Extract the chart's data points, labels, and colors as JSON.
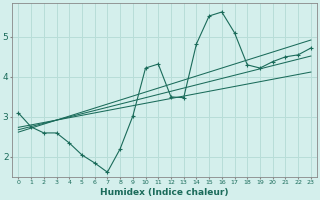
{
  "xlabel": "Humidex (Indice chaleur)",
  "bg_color": "#d4efec",
  "grid_color": "#b8ddd8",
  "line_color": "#1a6b5a",
  "x_data": [
    0,
    1,
    2,
    3,
    4,
    5,
    6,
    7,
    8,
    9,
    10,
    11,
    12,
    13,
    14,
    15,
    16,
    17,
    18,
    19,
    20,
    21,
    22,
    23
  ],
  "line1": [
    3.1,
    2.75,
    2.6,
    2.6,
    2.35,
    2.05,
    1.85,
    1.62,
    2.2,
    3.02,
    4.22,
    4.32,
    3.5,
    3.48,
    4.82,
    5.52,
    5.62,
    5.1,
    4.3,
    4.22,
    4.38,
    4.5,
    4.55,
    4.72
  ],
  "line_reg1": [
    2.62,
    2.72,
    2.82,
    2.92,
    3.02,
    3.12,
    3.22,
    3.32,
    3.42,
    3.52,
    3.62,
    3.72,
    3.82,
    3.92,
    4.02,
    4.12,
    4.22,
    4.32,
    4.42,
    4.52,
    4.62,
    4.72,
    4.82,
    4.92
  ],
  "line_reg2": [
    2.68,
    2.76,
    2.84,
    2.92,
    3.0,
    3.08,
    3.16,
    3.24,
    3.32,
    3.4,
    3.48,
    3.56,
    3.64,
    3.72,
    3.8,
    3.88,
    3.96,
    4.04,
    4.12,
    4.2,
    4.28,
    4.36,
    4.44,
    4.52
  ],
  "line_reg3": [
    2.74,
    2.8,
    2.86,
    2.92,
    2.98,
    3.04,
    3.1,
    3.16,
    3.22,
    3.28,
    3.34,
    3.4,
    3.46,
    3.52,
    3.58,
    3.64,
    3.7,
    3.76,
    3.82,
    3.88,
    3.94,
    4.0,
    4.06,
    4.12
  ],
  "ylim": [
    1.5,
    5.85
  ],
  "yticks": [
    2,
    3,
    4,
    5
  ],
  "xticks": [
    0,
    1,
    2,
    3,
    4,
    5,
    6,
    7,
    8,
    9,
    10,
    11,
    12,
    13,
    14,
    15,
    16,
    17,
    18,
    19,
    20,
    21,
    22,
    23
  ]
}
